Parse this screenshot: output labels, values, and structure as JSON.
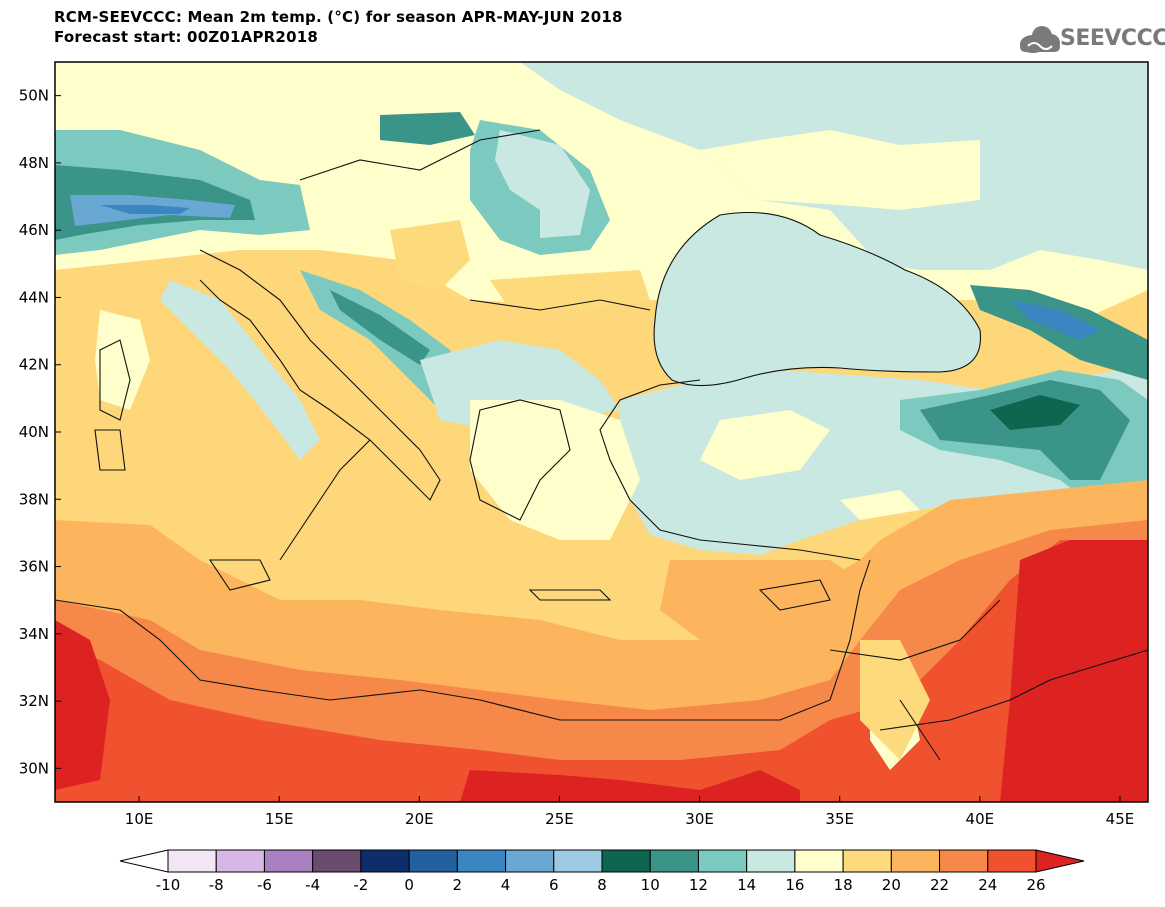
{
  "header": {
    "line1": "RCM-SEEVCCC: Mean 2m temp. (°C) for season APR-MAY-JUN 2018",
    "line2": "Forecast start: 00Z01APR2018"
  },
  "logo": {
    "text": "SEEVCCC",
    "icon": "cloud-icon"
  },
  "map": {
    "lon_range": [
      7,
      46
    ],
    "lat_range": [
      29,
      51
    ],
    "lat_ticks": [
      "30N",
      "32N",
      "34N",
      "36N",
      "38N",
      "40N",
      "42N",
      "44N",
      "46N",
      "48N",
      "50N"
    ],
    "lat_values": [
      30,
      32,
      34,
      36,
      38,
      40,
      42,
      44,
      46,
      48,
      50
    ],
    "lon_ticks": [
      "10E",
      "15E",
      "20E",
      "25E",
      "30E",
      "35E",
      "40E",
      "45E"
    ],
    "lon_values": [
      10,
      15,
      20,
      25,
      30,
      35,
      40,
      45
    ]
  },
  "legend": {
    "labels": [
      "-10",
      "-8",
      "-6",
      "-4",
      "-2",
      "0",
      "2",
      "4",
      "6",
      "8",
      "10",
      "12",
      "14",
      "16",
      "18",
      "20",
      "22",
      "24",
      "26"
    ],
    "colors": [
      "#f2e6f5",
      "#d7b7e5",
      "#a981c0",
      "#6a4d6e",
      "#0c2f6b",
      "#22609f",
      "#3a86c1",
      "#6aa8d4",
      "#9ec9e2",
      "#0f6650",
      "#3a9488",
      "#7ccabf",
      "#c8e8e1",
      "#ffffcc",
      "#fddb7c",
      "#fdb55d",
      "#f6894a",
      "#f0522f"
    ],
    "under_color": "#ffffff",
    "over_color": "#dd2222"
  }
}
